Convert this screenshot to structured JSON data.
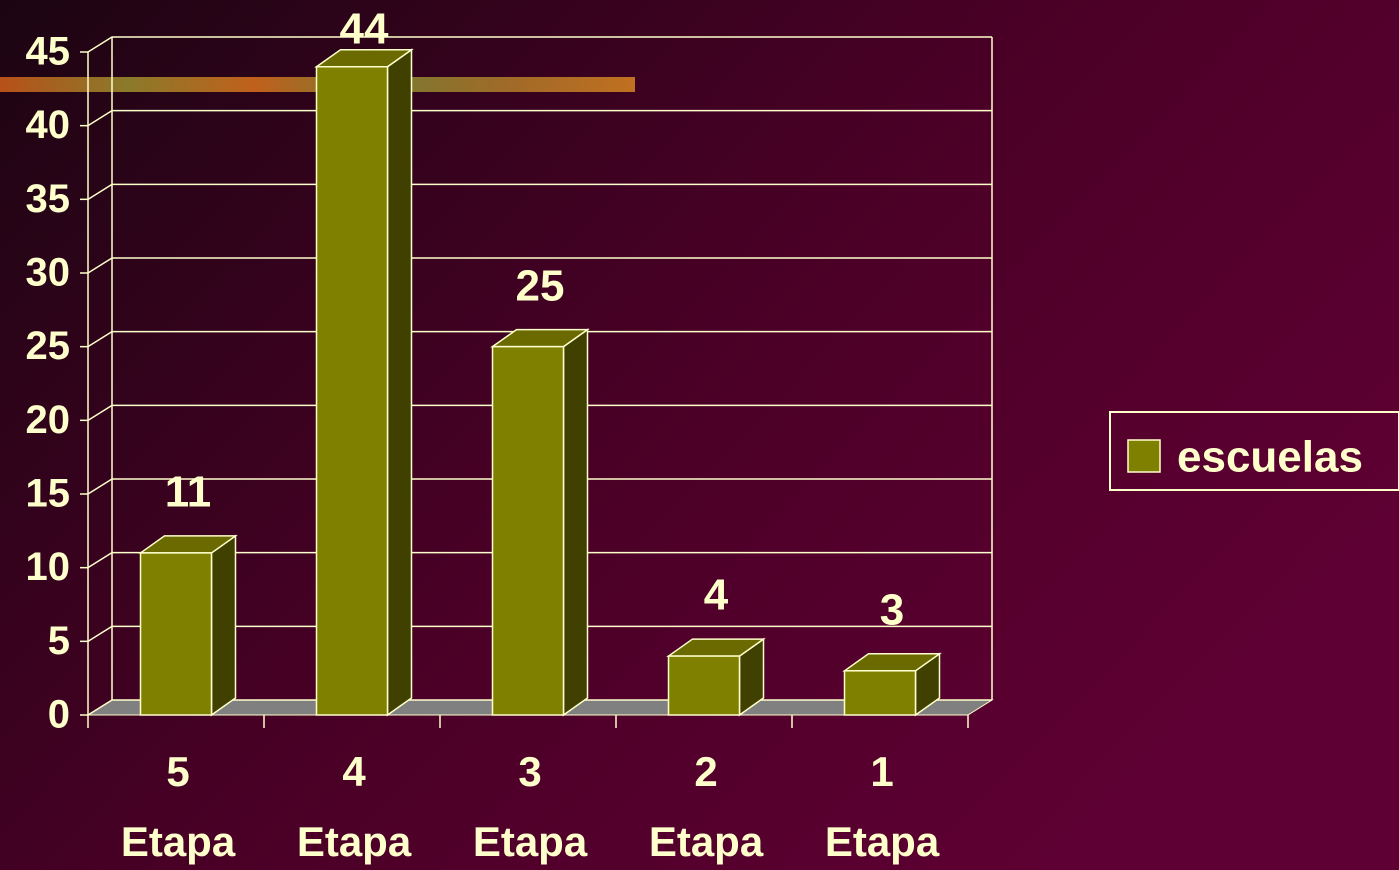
{
  "chart_data": {
    "type": "bar",
    "categories": [
      "5 Etapa",
      "4 Etapa",
      "3 Etapa",
      "2 Etapa",
      "1 Etapa"
    ],
    "series": [
      {
        "name": "escuelas",
        "color": "#808000",
        "values": [
          11,
          44,
          25,
          4,
          3
        ]
      }
    ],
    "ylim": [
      0,
      45
    ],
    "yticks": [
      0,
      5,
      10,
      15,
      20,
      25,
      30,
      35,
      40,
      45
    ],
    "grid": true,
    "legend": "right"
  }
}
